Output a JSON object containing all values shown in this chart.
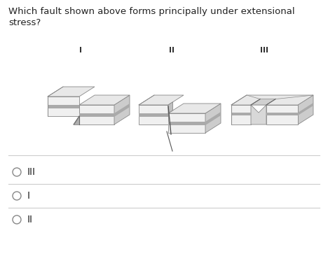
{
  "question_line1": "Which fault shown above forms principally under extensional",
  "question_line2": "stress?",
  "options": [
    "III",
    "I",
    "II"
  ],
  "bg_color": "#ffffff",
  "text_color": "#222222",
  "option_text_color": "#222222",
  "label_I": "I",
  "label_II": "II",
  "label_III": "III",
  "fig_width": 4.68,
  "fig_height": 3.76,
  "dpi": 100,
  "top_face_color": "#e8e8e8",
  "front_face_color": "#f0f0f0",
  "side_face_color": "#cccccc",
  "dark_layer_color": "#aaaaaa",
  "edge_color": "#888888",
  "fault_color": "#999999"
}
